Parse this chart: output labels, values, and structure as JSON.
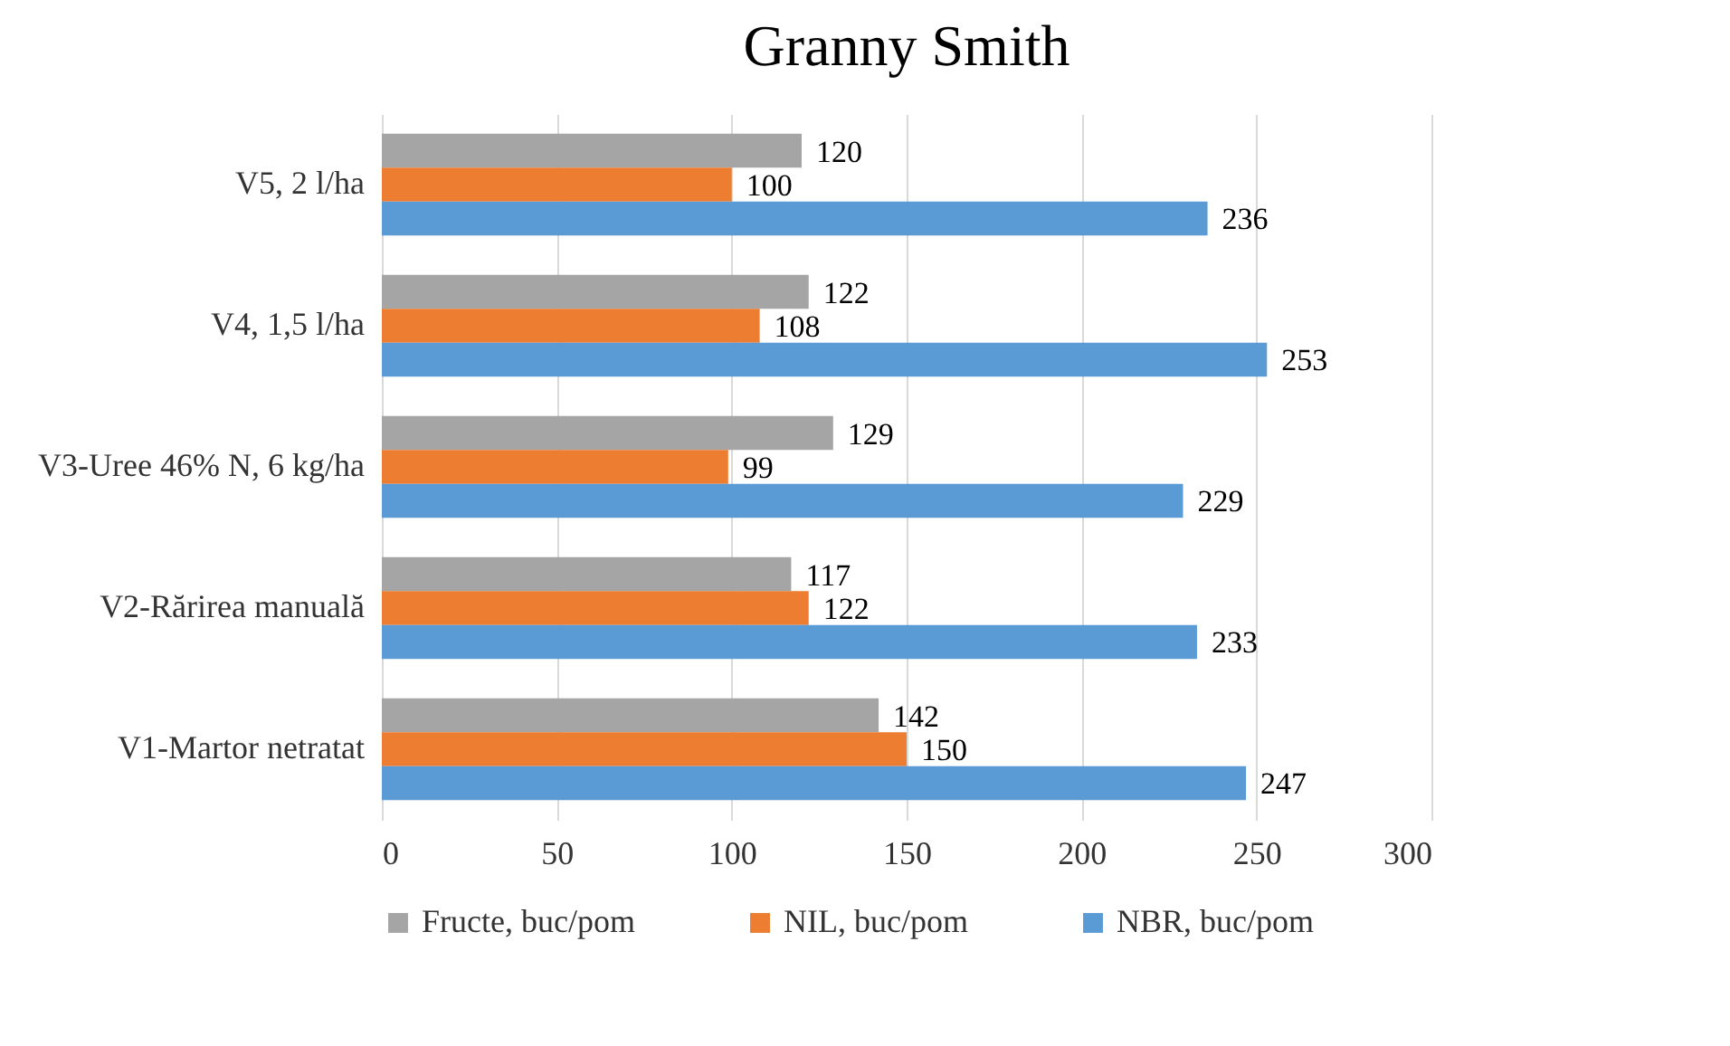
{
  "chart_data": {
    "type": "bar",
    "title": "Granny Smith",
    "orientation": "horizontal",
    "categories": [
      "V5, 2 l/ha",
      "V4, 1,5 l/ha",
      "V3-Uree 46% N, 6 kg/ha",
      "V2-Rărirea manuală",
      "V1-Martor netratat"
    ],
    "series": [
      {
        "name": "Fructe, buc/pom",
        "color": "#a5a5a5",
        "values": [
          120,
          122,
          129,
          117,
          142
        ]
      },
      {
        "name": "NIL, buc/pom",
        "color": "#ed7d31",
        "values": [
          100,
          108,
          99,
          122,
          150
        ]
      },
      {
        "name": "NBR, buc/pom",
        "color": "#5b9bd5",
        "values": [
          236,
          253,
          229,
          233,
          247
        ]
      }
    ],
    "xlim": [
      0,
      300
    ],
    "xticks": [
      0,
      50,
      100,
      150,
      200,
      250,
      300
    ],
    "grid": "x",
    "legend": "bottom",
    "data_labels": true
  }
}
